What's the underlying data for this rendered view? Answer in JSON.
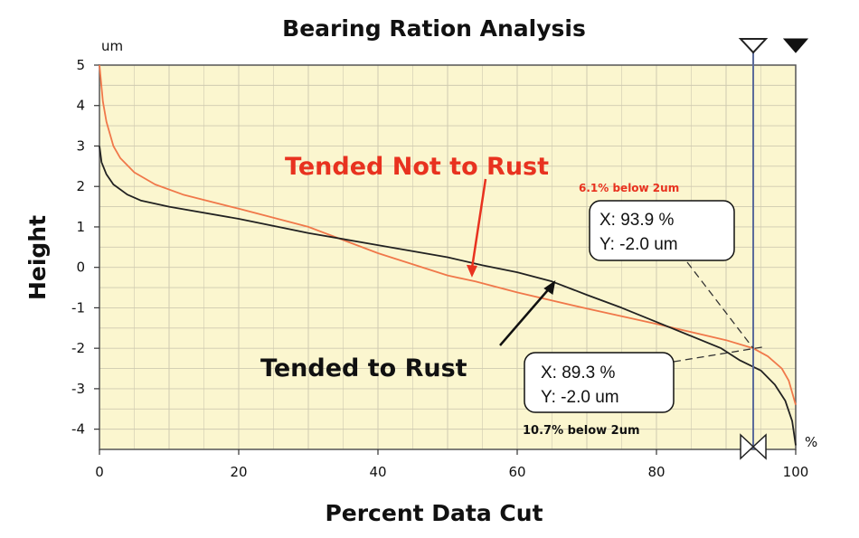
{
  "chart_data": {
    "type": "line",
    "title": "Bearing Ration Analysis",
    "xlabel": "Percent Data Cut",
    "ylabel": "Height",
    "x_unit": "%",
    "y_unit": "um",
    "xlim": [
      0,
      100
    ],
    "ylim": [
      -4.5,
      5
    ],
    "x_ticks": [
      0,
      20,
      40,
      60,
      80,
      100
    ],
    "y_ticks": [
      5,
      4,
      3,
      2,
      1,
      0,
      -1,
      -2,
      -3,
      -4
    ],
    "grid": true,
    "series": [
      {
        "name": "Tended Not to Rust",
        "color": "#f0784a",
        "x": [
          0,
          0.5,
          1,
          2,
          3,
          5,
          8,
          12,
          20,
          30,
          40,
          50,
          54,
          60,
          70,
          80,
          85,
          90,
          93.9,
          96,
          98,
          99,
          100
        ],
        "y": [
          5.0,
          4.1,
          3.6,
          3.0,
          2.7,
          2.35,
          2.05,
          1.8,
          1.45,
          1.0,
          0.35,
          -0.2,
          -0.35,
          -0.62,
          -1.02,
          -1.4,
          -1.6,
          -1.8,
          -2.0,
          -2.2,
          -2.5,
          -2.8,
          -3.4
        ]
      },
      {
        "name": "Tended to Rust",
        "color": "#222222",
        "x": [
          0,
          0.3,
          1,
          2,
          4,
          6,
          10,
          20,
          30,
          40,
          50,
          55,
          60,
          65,
          70,
          75,
          80,
          85,
          89.3,
          92,
          95,
          97,
          98.5,
          99.5,
          100
        ],
        "y": [
          3.0,
          2.6,
          2.3,
          2.05,
          1.8,
          1.65,
          1.5,
          1.2,
          0.85,
          0.55,
          0.25,
          0.05,
          -0.12,
          -0.35,
          -0.68,
          -1.0,
          -1.35,
          -1.7,
          -2.0,
          -2.3,
          -2.55,
          -2.9,
          -3.3,
          -3.8,
          -4.4
        ]
      }
    ],
    "reference_line_x": 93.9,
    "annotations": {
      "not_rust_label": "Tended Not to Rust",
      "rust_label": "Tended to Rust",
      "not_rust_below": "6.1% below 2um",
      "rust_below": "10.7% below 2um",
      "point_not_rust": {
        "x": 93.9,
        "y": -2.0,
        "line1": "X: 93.9 %",
        "line2": "Y: -2.0 um"
      },
      "point_rust": {
        "x": 89.3,
        "y": -2.0,
        "line1": "X: 89.3 %",
        "line2": "Y: -2.0 um"
      }
    },
    "colors": {
      "background": "#ffffff",
      "plot_bg": "#fbf6cf",
      "grid": "#cfcab0",
      "red": "#e8321f",
      "black": "#111111"
    }
  }
}
